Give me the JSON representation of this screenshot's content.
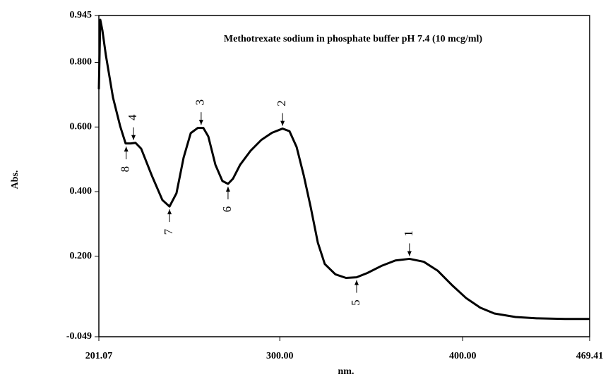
{
  "chart_data": {
    "type": "line",
    "title": "Methotrexate sodium in phosphate buffer pH 7.4 (10 mcg/ml)",
    "x_label": "nm.",
    "y_label": "Abs.",
    "x": [
      201.07,
      201.84,
      203.0,
      204.9,
      208.8,
      212.7,
      215.7,
      218.5,
      221.1,
      224.2,
      230.0,
      235.8,
      239.7,
      243.5,
      247.4,
      251.3,
      255.1,
      258.2,
      260.9,
      264.8,
      268.6,
      271.7,
      274.4,
      278.3,
      284.1,
      289.9,
      295.7,
      301.5,
      305.3,
      309.2,
      313.1,
      316.9,
      320.8,
      324.6,
      330.4,
      336.2,
      342.0,
      347.8,
      355.5,
      363.2,
      370.9,
      378.7,
      386.4,
      394.1,
      401.8,
      409.6,
      417.3,
      428.9,
      440.5,
      455.9,
      469.41
    ],
    "values": [
      0.717,
      0.932,
      0.899,
      0.822,
      0.691,
      0.603,
      0.549,
      0.549,
      0.551,
      0.533,
      0.45,
      0.374,
      0.354,
      0.395,
      0.505,
      0.581,
      0.597,
      0.597,
      0.571,
      0.483,
      0.433,
      0.424,
      0.44,
      0.483,
      0.527,
      0.56,
      0.582,
      0.595,
      0.587,
      0.538,
      0.45,
      0.352,
      0.242,
      0.176,
      0.144,
      0.133,
      0.135,
      0.148,
      0.17,
      0.187,
      0.192,
      0.183,
      0.155,
      0.111,
      0.071,
      0.041,
      0.023,
      0.012,
      0.008,
      0.006,
      0.006
    ],
    "color": "#000000",
    "xlim": [
      201.07,
      469.41
    ],
    "xticks": [
      201.07,
      {
        "value": 300,
        "label": "300.00"
      },
      {
        "value": 400,
        "label": "400.00"
      },
      469.41
    ],
    "ylim": [
      -0.049,
      0.945
    ],
    "yticks": [
      {
        "value": -0.049,
        "label": "-0.049"
      },
      {
        "value": 0.2,
        "label": "0.200"
      },
      {
        "value": 0.4,
        "label": "0.400"
      },
      {
        "value": 0.6,
        "label": "0.600"
      },
      {
        "value": 0.8,
        "label": "0.800"
      },
      {
        "value": 0.945,
        "label": "0.945"
      }
    ],
    "annotations": [
      {
        "label": "1",
        "x": 370.9,
        "y": 0.192
      },
      {
        "label": "2",
        "x": 301.5,
        "y": 0.595
      },
      {
        "label": "3",
        "x": 257.0,
        "y": 0.598
      },
      {
        "label": "4",
        "x": 220.0,
        "y": 0.551
      },
      {
        "label": "5",
        "x": 342.0,
        "y": 0.135
      },
      {
        "label": "6",
        "x": 271.7,
        "y": 0.424
      },
      {
        "label": "7",
        "x": 239.7,
        "y": 0.354
      },
      {
        "label": "8",
        "x": 216.0,
        "y": 0.548
      }
    ]
  }
}
